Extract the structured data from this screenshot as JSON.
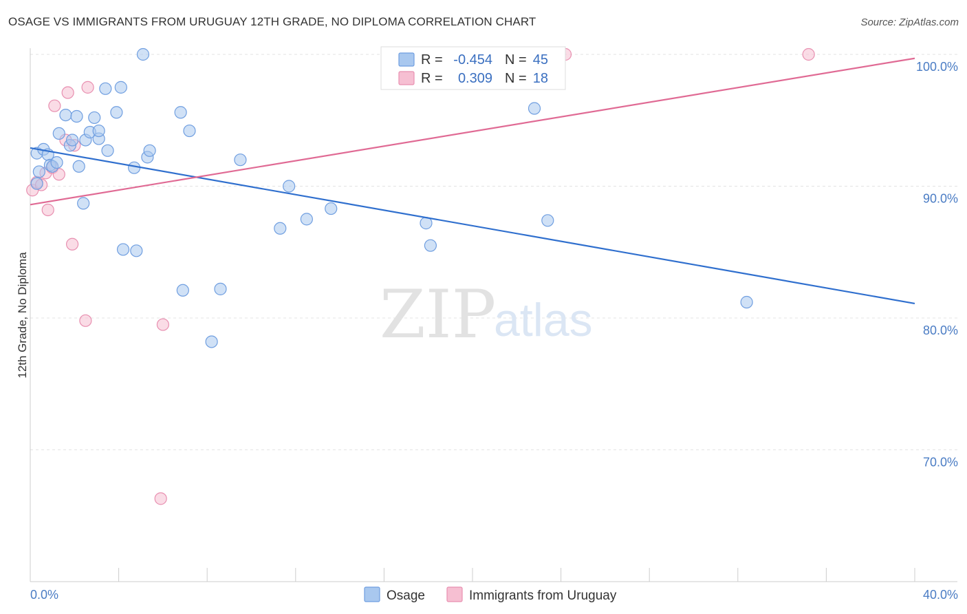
{
  "title": "OSAGE VS IMMIGRANTS FROM URUGUAY 12TH GRADE, NO DIPLOMA CORRELATION CHART",
  "source": "Source: ZipAtlas.com",
  "watermark": {
    "zip": "ZIP",
    "atlas": "atlas"
  },
  "colors": {
    "osage_fill": "#a9c8ef",
    "osage_stroke": "#6f9ee0",
    "osage_line": "#2f6fce",
    "uruguay_fill": "#f6bfd2",
    "uruguay_stroke": "#e88fb0",
    "uruguay_line": "#e06a94",
    "tick_color": "#4a7cc4",
    "grid": "#e3e3e3"
  },
  "legend": {
    "r_label": "R =",
    "n_label": "N =",
    "rows": [
      {
        "r": "-0.454",
        "n": "45"
      },
      {
        "r": "0.309",
        "n": "18"
      }
    ]
  },
  "bottom_legend": [
    "Osage",
    "Immigrants from Uruguay"
  ],
  "chart_data": {
    "type": "scatter",
    "title": "OSAGE VS IMMIGRANTS FROM URUGUAY 12TH GRADE, NO DIPLOMA CORRELATION CHART",
    "xlabel": "",
    "ylabel": "12th Grade, No Diploma",
    "x_ticks": [
      "0.0%",
      "40.0%"
    ],
    "y_ticks": [
      "100.0%",
      "90.0%",
      "80.0%",
      "70.0%"
    ],
    "xlim": [
      0,
      40
    ],
    "ylim": [
      60.5,
      100.8
    ],
    "grid": true,
    "legend_position": "top-center",
    "series": [
      {
        "name": "Osage",
        "r": -0.454,
        "n": 45,
        "trend": {
          "x": [
            0,
            40
          ],
          "y": [
            92.9,
            81.1
          ]
        },
        "points": [
          [
            0.3,
            92.5
          ],
          [
            0.4,
            91.1
          ],
          [
            0.3,
            90.2
          ],
          [
            0.6,
            92.8
          ],
          [
            0.8,
            92.4
          ],
          [
            0.9,
            91.6
          ],
          [
            1.0,
            91.5
          ],
          [
            1.2,
            91.8
          ],
          [
            1.3,
            94.0
          ],
          [
            1.6,
            95.4
          ],
          [
            1.8,
            93.1
          ],
          [
            1.9,
            93.5
          ],
          [
            2.1,
            95.3
          ],
          [
            2.2,
            91.5
          ],
          [
            2.4,
            88.7
          ],
          [
            2.5,
            93.5
          ],
          [
            2.7,
            94.1
          ],
          [
            2.9,
            95.2
          ],
          [
            3.1,
            93.6
          ],
          [
            3.1,
            94.2
          ],
          [
            3.4,
            97.4
          ],
          [
            3.5,
            92.7
          ],
          [
            3.9,
            95.6
          ],
          [
            4.1,
            97.5
          ],
          [
            4.2,
            85.2
          ],
          [
            4.7,
            91.4
          ],
          [
            4.8,
            85.1
          ],
          [
            5.1,
            100.0
          ],
          [
            5.3,
            92.2
          ],
          [
            5.4,
            92.7
          ],
          [
            6.8,
            95.6
          ],
          [
            6.9,
            82.1
          ],
          [
            7.2,
            94.2
          ],
          [
            8.2,
            78.2
          ],
          [
            8.6,
            82.2
          ],
          [
            9.5,
            92.0
          ],
          [
            11.3,
            86.8
          ],
          [
            11.7,
            90.0
          ],
          [
            12.5,
            87.5
          ],
          [
            13.6,
            88.3
          ],
          [
            17.9,
            87.2
          ],
          [
            18.1,
            85.5
          ],
          [
            22.8,
            95.9
          ],
          [
            23.4,
            87.4
          ],
          [
            32.4,
            81.2
          ]
        ]
      },
      {
        "name": "Immigrants from Uruguay",
        "r": 0.309,
        "n": 18,
        "trend": {
          "x": [
            0,
            40
          ],
          "y": [
            88.6,
            99.7
          ]
        },
        "points": [
          [
            0.1,
            89.7
          ],
          [
            0.3,
            90.3
          ],
          [
            0.5,
            90.1
          ],
          [
            0.7,
            91.0
          ],
          [
            0.8,
            88.2
          ],
          [
            1.0,
            91.4
          ],
          [
            1.1,
            96.1
          ],
          [
            1.3,
            90.9
          ],
          [
            1.6,
            93.5
          ],
          [
            1.7,
            97.1
          ],
          [
            1.9,
            85.6
          ],
          [
            2.0,
            93.1
          ],
          [
            2.5,
            79.8
          ],
          [
            2.6,
            97.5
          ],
          [
            5.9,
            66.3
          ],
          [
            6.0,
            79.5
          ],
          [
            24.2,
            100.0
          ],
          [
            35.2,
            100.0
          ]
        ]
      }
    ]
  }
}
